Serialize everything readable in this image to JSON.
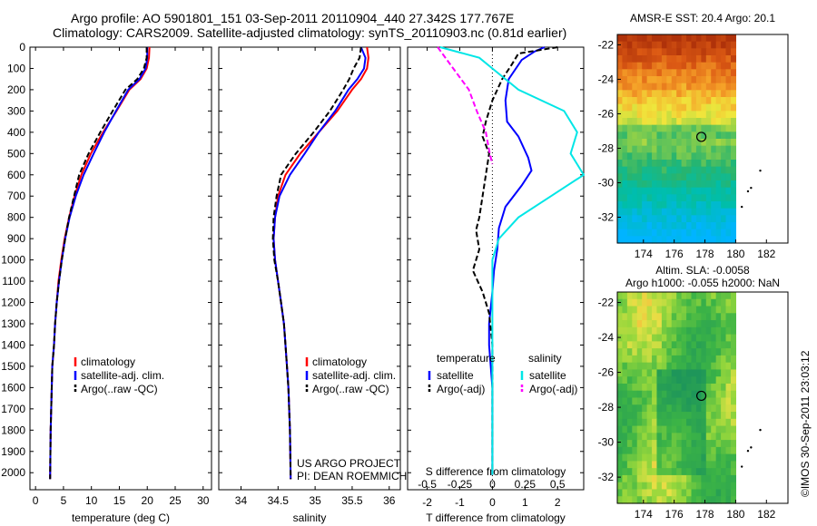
{
  "header": {
    "line1": "Argo profile: AO 5901801_151 03-Sep-2011 20110904_440 27.342S 177.767E",
    "line2": "Climatology: CARS2009. Satellite-adjusted climatology: synTS_20110903.nc (0.81d earlier)"
  },
  "colors": {
    "red": "#ff0000",
    "blue": "#0000ff",
    "black": "#000000",
    "cyan": "#00e6e6",
    "magenta": "#ff00ff"
  },
  "chart_data": [
    {
      "type": "line",
      "name": "temperature profile",
      "xlabel": "temperature (deg C)",
      "ylabel": "",
      "xlim": [
        -1,
        31.5
      ],
      "ylim": [
        2080,
        0
      ],
      "xticks": [
        0,
        5,
        10,
        15,
        20,
        25,
        30
      ],
      "yticks": [
        0,
        100,
        200,
        300,
        400,
        500,
        600,
        700,
        800,
        900,
        1000,
        1100,
        1200,
        1300,
        1400,
        1500,
        1600,
        1700,
        1800,
        1900,
        2000
      ],
      "legend": [
        "climatology",
        "satellite-adj. clim.",
        "Argo(..raw -QC)"
      ],
      "series": [
        {
          "name": "climatology",
          "color": "#ff0000",
          "dash": "solid",
          "x": [
            20.4,
            20.3,
            19.9,
            18.8,
            16.8,
            14.5,
            12.1,
            9.9,
            8.2,
            7.0,
            6.0,
            5.2,
            4.6,
            4.1,
            3.8,
            3.5,
            3.3,
            3.0,
            2.9,
            2.7,
            2.6
          ],
          "y": [
            0,
            50,
            100,
            150,
            200,
            300,
            400,
            500,
            600,
            700,
            800,
            900,
            1000,
            1100,
            1200,
            1300,
            1400,
            1500,
            1600,
            1800,
            2030
          ]
        },
        {
          "name": "satellite-adj. clim.",
          "color": "#0000ff",
          "dash": "solid",
          "x": [
            20.0,
            20.0,
            19.7,
            18.6,
            16.6,
            14.4,
            12.3,
            10.4,
            8.6,
            7.2,
            6.1,
            5.3,
            4.7,
            4.2,
            3.8,
            3.5,
            3.3,
            3.0,
            2.9,
            2.7,
            2.6
          ],
          "y": [
            0,
            50,
            100,
            150,
            200,
            300,
            400,
            500,
            600,
            700,
            800,
            900,
            1000,
            1100,
            1200,
            1300,
            1400,
            1500,
            1600,
            1800,
            2030
          ]
        },
        {
          "name": "Argo(..raw -QC)",
          "color": "#000000",
          "dash": "dash",
          "x": [
            19.9,
            19.9,
            19.4,
            18.2,
            16.1,
            13.8,
            11.6,
            9.5,
            7.8,
            6.9,
            6.0,
            5.3,
            4.7,
            4.2,
            3.8,
            3.5,
            3.3,
            3.0,
            2.9,
            2.7,
            2.6
          ],
          "y": [
            0,
            50,
            100,
            150,
            200,
            300,
            400,
            500,
            600,
            700,
            800,
            900,
            1000,
            1100,
            1200,
            1300,
            1400,
            1500,
            1600,
            1800,
            2030
          ]
        }
      ]
    },
    {
      "type": "line",
      "name": "salinity profile",
      "xlabel": "salinity",
      "xlim": [
        33.7,
        36.15
      ],
      "ylim": [
        2080,
        0
      ],
      "xticks": [
        34,
        34.5,
        35,
        35.5,
        36
      ],
      "xticklabels": [
        "34",
        "34.5",
        "35",
        "35.5",
        "36"
      ],
      "legend": [
        "climatology",
        "satellite-adj. clim.",
        "Argo(..raw -QC)"
      ],
      "annotation": [
        "US ARGO PROJECT",
        "PI: DEAN ROEMMICH"
      ],
      "series": [
        {
          "name": "climatology",
          "color": "#ff0000",
          "dash": "solid",
          "x": [
            35.7,
            35.72,
            35.7,
            35.62,
            35.5,
            35.3,
            35.05,
            34.8,
            34.6,
            34.5,
            34.46,
            34.44,
            34.46,
            34.5,
            34.54,
            34.58,
            34.6,
            34.62,
            34.64,
            34.66,
            34.67
          ],
          "y": [
            0,
            50,
            100,
            150,
            200,
            300,
            400,
            500,
            600,
            700,
            800,
            900,
            1000,
            1100,
            1200,
            1300,
            1400,
            1500,
            1600,
            1800,
            2030
          ]
        },
        {
          "name": "satellite-adj. clim.",
          "color": "#0000ff",
          "dash": "solid",
          "x": [
            35.62,
            35.68,
            35.66,
            35.57,
            35.45,
            35.27,
            35.05,
            34.86,
            34.66,
            34.52,
            34.46,
            34.44,
            34.46,
            34.5,
            34.54,
            34.58,
            34.6,
            34.62,
            34.64,
            34.66,
            34.67
          ],
          "y": [
            0,
            50,
            100,
            150,
            200,
            300,
            400,
            500,
            600,
            700,
            800,
            900,
            1000,
            1100,
            1200,
            1300,
            1400,
            1500,
            1600,
            1800,
            2030
          ]
        },
        {
          "name": "Argo(..raw -QC)",
          "color": "#000000",
          "dash": "dash",
          "x": [
            35.62,
            35.6,
            35.52,
            35.46,
            35.38,
            35.2,
            34.98,
            34.74,
            34.54,
            34.48,
            34.44,
            34.43,
            34.45,
            34.5,
            34.54,
            34.58,
            34.6,
            34.62,
            34.64,
            34.66,
            34.67
          ],
          "y": [
            0,
            50,
            100,
            150,
            200,
            300,
            400,
            500,
            600,
            700,
            800,
            900,
            1000,
            1100,
            1200,
            1300,
            1400,
            1500,
            1600,
            1800,
            2030
          ]
        }
      ]
    },
    {
      "type": "line",
      "name": "difference profile",
      "xlabel_top": "S difference from climatology",
      "xlabel": "T difference from climatology",
      "xlim": [
        -2.6,
        2.8
      ],
      "ylim": [
        2080,
        0
      ],
      "xticks_T": [
        -2,
        -1,
        0,
        1,
        2
      ],
      "xticklabels_T": [
        "-2",
        "-1",
        "0",
        "1",
        "2"
      ],
      "xticks_S": [
        -0.5,
        -0.25,
        0,
        0.25,
        0.5
      ],
      "xticklabels_S": [
        "-0.5",
        "-0.25",
        "0",
        "0.25",
        "0.5"
      ],
      "legend": [
        {
          "group": "temperature",
          "items": [
            "satellite",
            "Argo(-adj)"
          ]
        },
        {
          "group": "salinity",
          "items": [
            "satellite",
            "Argo(-adj)"
          ]
        }
      ],
      "series": [
        {
          "name": "temperature satellite",
          "color": "#0000ff",
          "dash": "solid",
          "x": [
            1.6,
            1.3,
            0.9,
            0.5,
            0.4,
            0.45,
            0.8,
            1.1,
            1.2,
            0.9,
            0.4,
            0.2,
            0.15,
            0.05,
            0.0,
            -0.1,
            -0.1,
            -0.05,
            0.0,
            0.0,
            0.0
          ],
          "y": [
            0,
            20,
            60,
            150,
            250,
            350,
            420,
            520,
            580,
            650,
            750,
            850,
            950,
            1050,
            1150,
            1300,
            1400,
            1500,
            1600,
            1800,
            2010
          ]
        },
        {
          "name": "temperature Argo(-adj)",
          "color": "#000000",
          "dash": "dash",
          "x": [
            2.0,
            0.8,
            0.6,
            0.3,
            0.0,
            -0.2,
            -0.3,
            -0.1,
            -0.2,
            -0.3,
            -0.4,
            -0.5,
            -0.4,
            -0.6,
            -0.3,
            -0.1,
            0.0,
            0.0,
            0.0,
            0.0,
            0.0
          ],
          "y": [
            0,
            30,
            80,
            150,
            250,
            350,
            420,
            500,
            600,
            700,
            800,
            860,
            950,
            1050,
            1150,
            1250,
            1400,
            1500,
            1600,
            1800,
            2010
          ]
        },
        {
          "name": "salinity satellite",
          "color": "#00e6e6",
          "dash": "solid",
          "x": [
            -0.4,
            -0.1,
            0.0,
            0.2,
            0.55,
            0.65,
            0.6,
            0.7,
            0.45,
            0.2,
            0.05,
            0.0,
            0.0,
            0.0,
            0.0,
            0.0,
            0.0,
            0.0
          ],
          "y": [
            0,
            50,
            100,
            200,
            300,
            400,
            500,
            600,
            700,
            800,
            900,
            1000,
            1100,
            1200,
            1400,
            1600,
            1800,
            2010
          ]
        },
        {
          "name": "salinity Argo(-adj)",
          "color": "#ff00ff",
          "dash": "dash",
          "x": [
            -0.42,
            -0.3,
            -0.18,
            -0.12,
            -0.05,
            -0.02,
            0.0
          ],
          "y": [
            0,
            100,
            200,
            300,
            400,
            500,
            550
          ]
        }
      ]
    },
    {
      "type": "heatmap",
      "name": "sst map",
      "title": "AMSR-E SST: 20.4  Argo: 20.1",
      "xlim": [
        172.3,
        183.4
      ],
      "ylim": [
        -33.5,
        -21.4
      ],
      "xticks": [
        174,
        176,
        178,
        180,
        182
      ],
      "yticks": [
        -22,
        -24,
        -26,
        -28,
        -30,
        -32
      ],
      "marker": {
        "lon": 177.767,
        "lat": -27.342
      }
    },
    {
      "type": "heatmap",
      "name": "sla map",
      "title": [
        "Altim. SLA: -0.0058",
        "Argo h1000: -0.055 h2000: NaN"
      ],
      "xlim": [
        172.3,
        183.4
      ],
      "ylim": [
        -33.5,
        -21.4
      ],
      "xticks": [
        174,
        176,
        178,
        180,
        182
      ],
      "yticks": [
        -22,
        -24,
        -26,
        -28,
        -30,
        -32
      ],
      "marker": {
        "lon": 177.767,
        "lat": -27.342
      }
    }
  ],
  "side_label": "©IMOS 30-Sep-2011 23:03:12"
}
